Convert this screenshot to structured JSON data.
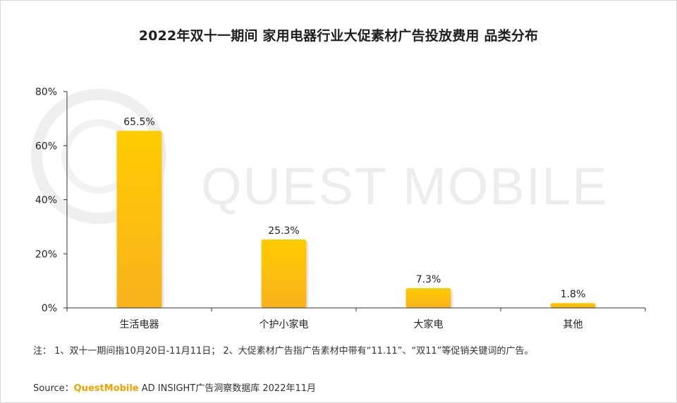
{
  "chart_data": {
    "type": "bar",
    "title": "2022年双十一期间 家用电器行业大促素材广告投放费用 品类分布",
    "categories": [
      "生活电器",
      "个护小家电",
      "大家电",
      "其他"
    ],
    "values": [
      65.5,
      25.3,
      7.3,
      1.8
    ],
    "value_labels": [
      "65.5%",
      "25.3%",
      "7.3%",
      "1.8%"
    ],
    "ylim": [
      0,
      80
    ],
    "yticks": [
      0,
      20,
      40,
      60,
      80
    ],
    "ytick_labels": [
      "0%",
      "20%",
      "40%",
      "60%",
      "80%"
    ],
    "xlabel": "",
    "ylabel": "",
    "grid": false,
    "bar_color_top": "#ffcc00",
    "bar_color_bottom": "#f9b21d"
  },
  "watermark": "QUEST MOBILE",
  "note": "注： 1、双十一期间指10月20日-11月11日； 2、大促素材广告指广告素材中带有“11.11”、“双11”等促销关键词的广告。",
  "source": {
    "prefix": "Source：",
    "brand": "QuestMobile",
    "rest": " AD INSIGHT广告洞察数据库 2022年11月"
  }
}
